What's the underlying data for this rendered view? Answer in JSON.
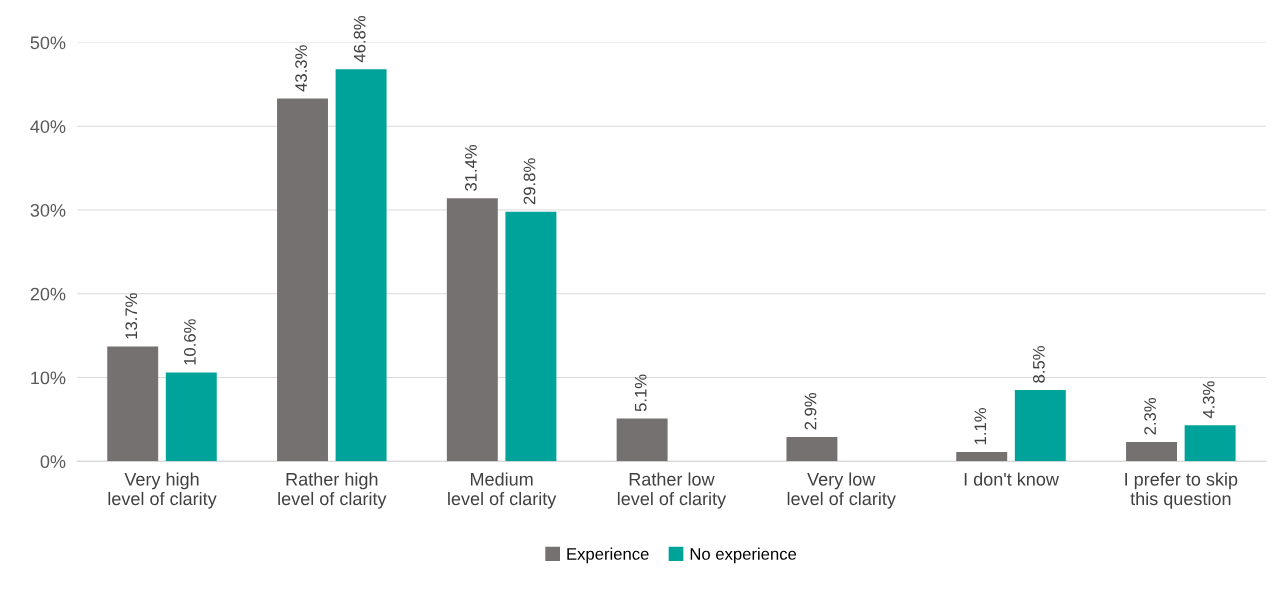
{
  "chart_data": {
    "type": "bar",
    "categories": [
      "Very high\nlevel of clarity",
      "Rather high\nlevel of clarity",
      "Medium\nlevel of clarity",
      "Rather low\nlevel of clarity",
      "Very low\nlevel of clarity",
      "I don't know",
      "I prefer to skip\nthis question"
    ],
    "series": [
      {
        "name": "Experience",
        "color": "#767171",
        "values": [
          13.7,
          43.3,
          31.4,
          5.1,
          2.9,
          1.1,
          2.3
        ],
        "value_labels": [
          "13.7%",
          "43.3%",
          "31.4%",
          "5.1%",
          "2.9%",
          "1.1%",
          "2.3%"
        ]
      },
      {
        "name": "No experience",
        "color": "#00a39a",
        "values": [
          10.6,
          46.8,
          29.8,
          null,
          null,
          8.5,
          4.3
        ],
        "value_labels": [
          "10.6%",
          "46.8%",
          "29.8%",
          null,
          null,
          "8.5%",
          "4.3%"
        ]
      }
    ],
    "ylim": [
      0,
      50
    ],
    "yticks": [
      {
        "value": 0,
        "label": "0%"
      },
      {
        "value": 10,
        "label": "10%"
      },
      {
        "value": 20,
        "label": "20%"
      },
      {
        "value": 30,
        "label": "30%"
      },
      {
        "value": 40,
        "label": "40%"
      },
      {
        "value": 50,
        "label": "50%"
      }
    ],
    "grid": "y",
    "legend": "bottom"
  }
}
